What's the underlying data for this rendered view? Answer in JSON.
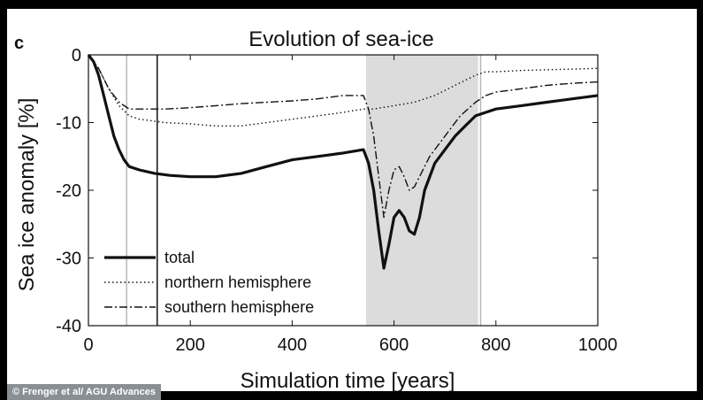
{
  "panel_label": "c",
  "credit": "© Frenger et al/ AGU Advances",
  "chart_data": {
    "type": "line",
    "title": "Evolution of sea-ice",
    "xlabel": "Simulation time [years]",
    "ylabel": "Sea ice anomaly [%]",
    "xlim": [
      0,
      1000
    ],
    "ylim": [
      -40,
      0
    ],
    "xticks": [
      0,
      200,
      400,
      600,
      800,
      1000
    ],
    "yticks": [
      0,
      -10,
      -20,
      -30,
      -40
    ],
    "legend_position": "bottom-left",
    "shaded_region": [
      545,
      765
    ],
    "vertical_lines": [
      {
        "x": 75,
        "color": "#b8b8b8"
      },
      {
        "x": 135,
        "color": "#111111"
      },
      {
        "x": 770,
        "color": "#b8b8b8"
      }
    ],
    "series": [
      {
        "name": "total",
        "style": "solid",
        "x": [
          0,
          10,
          20,
          30,
          40,
          50,
          60,
          70,
          80,
          100,
          130,
          160,
          200,
          250,
          300,
          350,
          400,
          450,
          500,
          540,
          550,
          560,
          570,
          580,
          590,
          600,
          610,
          620,
          630,
          640,
          650,
          660,
          680,
          700,
          720,
          740,
          760,
          780,
          800,
          850,
          900,
          950,
          1000
        ],
        "y": [
          0,
          -1,
          -3,
          -6,
          -9,
          -12,
          -14,
          -15.5,
          -16.5,
          -17,
          -17.5,
          -17.8,
          -18,
          -18,
          -17.5,
          -16.5,
          -15.5,
          -15,
          -14.5,
          -14,
          -16,
          -20,
          -26,
          -31.5,
          -28,
          -24,
          -23,
          -24,
          -26,
          -26.5,
          -24,
          -20,
          -16,
          -14,
          -12,
          -10.5,
          -9,
          -8.5,
          -8,
          -7.5,
          -7,
          -6.5,
          -6
        ]
      },
      {
        "name": "northern hemisphere",
        "style": "dotted",
        "x": [
          0,
          20,
          40,
          60,
          80,
          100,
          150,
          200,
          250,
          300,
          350,
          400,
          450,
          500,
          540,
          560,
          600,
          640,
          680,
          720,
          760,
          780,
          800,
          850,
          900,
          950,
          1000
        ],
        "y": [
          0,
          -2,
          -5,
          -7.5,
          -9,
          -9.5,
          -10,
          -10.2,
          -10.5,
          -10.5,
          -10,
          -9.5,
          -9,
          -8.5,
          -8,
          -8,
          -7.5,
          -7,
          -6,
          -4.5,
          -3,
          -2.5,
          -2.5,
          -2.3,
          -2.2,
          -2.1,
          -2
        ]
      },
      {
        "name": "southern hemisphere",
        "style": "dashdot",
        "x": [
          0,
          20,
          40,
          60,
          80,
          100,
          150,
          200,
          250,
          300,
          350,
          400,
          450,
          500,
          540,
          550,
          560,
          570,
          580,
          590,
          600,
          610,
          620,
          630,
          640,
          650,
          670,
          700,
          730,
          760,
          780,
          800,
          850,
          900,
          950,
          1000
        ],
        "y": [
          0,
          -2,
          -5,
          -7,
          -8,
          -8,
          -8,
          -7.8,
          -7.5,
          -7.2,
          -7,
          -6.8,
          -6.5,
          -6,
          -6,
          -8,
          -12,
          -18,
          -24,
          -20,
          -17,
          -16.5,
          -18,
          -20,
          -19.5,
          -18,
          -15,
          -12,
          -9,
          -7,
          -6,
          -5.5,
          -5,
          -4.5,
          -4.2,
          -4
        ]
      }
    ]
  }
}
